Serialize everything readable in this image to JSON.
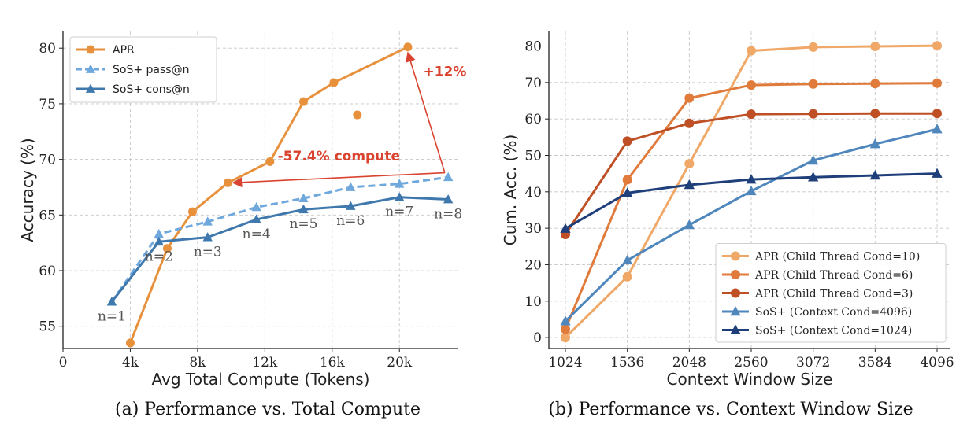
{
  "figure": {
    "caption_a": "(a) Performance vs. Total Compute",
    "caption_b": "(b) Performance vs. Context Window Size"
  },
  "chart_data": [
    {
      "type": "line",
      "xlabel": "Avg Total Compute (Tokens)",
      "ylabel": "Accuracy (%)",
      "xlim": [
        0,
        23500
      ],
      "ylim": [
        53,
        81.5
      ],
      "xticks": [
        0,
        4000,
        8000,
        12000,
        16000,
        20000
      ],
      "xtick_labels": [
        "0",
        "4k",
        "8k",
        "12k",
        "16k",
        "20k"
      ],
      "yticks": [
        55,
        60,
        65,
        70,
        75,
        80
      ],
      "grid": true,
      "legend_position": "top-left",
      "series": [
        {
          "name": "APR",
          "color": "#E8913D",
          "marker": "circle",
          "dashed": false,
          "x": [
            4000,
            6200,
            7700,
            9800,
            12300,
            14300,
            16100,
            20500
          ],
          "y": [
            53.5,
            62.0,
            65.3,
            67.9,
            69.8,
            75.2,
            76.9,
            80.1
          ]
        },
        {
          "name": "SoS+ pass@n",
          "color": "#6FA8DC",
          "marker": "triangle",
          "dashed": true,
          "x": [
            2900,
            5700,
            8600,
            11500,
            14300,
            17100,
            20000,
            22900
          ],
          "y": [
            57.2,
            63.3,
            64.4,
            65.7,
            66.5,
            67.5,
            67.8,
            68.4
          ]
        },
        {
          "name": "SoS+ cons@n",
          "color": "#3F78AD",
          "marker": "triangle",
          "dashed": false,
          "x": [
            2900,
            5700,
            8600,
            11500,
            14300,
            17100,
            20000,
            22900
          ],
          "y": [
            57.2,
            62.6,
            63.0,
            64.6,
            65.5,
            65.8,
            66.6,
            66.4
          ]
        }
      ],
      "extra_points": [
        {
          "series": "APR",
          "x": 17500,
          "y": 74.0
        }
      ],
      "point_labels": [
        {
          "text": "n=1",
          "x": 2900,
          "y": 57.2
        },
        {
          "text": "n=2",
          "x": 5700,
          "y": 62.6
        },
        {
          "text": "n=3",
          "x": 8600,
          "y": 63.0
        },
        {
          "text": "n=4",
          "x": 11500,
          "y": 64.6
        },
        {
          "text": "n=5",
          "x": 14300,
          "y": 65.5
        },
        {
          "text": "n=6",
          "x": 17100,
          "y": 65.8
        },
        {
          "text": "n=7",
          "x": 20000,
          "y": 66.6
        },
        {
          "text": "n=8",
          "x": 22900,
          "y": 66.4
        }
      ],
      "annotations": [
        {
          "text": "-57.4% compute",
          "color": "#D9432F",
          "arrow_from": {
            "x": 22700,
            "y": 68.8
          },
          "arrow_to": {
            "x": 10100,
            "y": 67.9
          },
          "text_at": {
            "x": 16400,
            "y": 69.9
          }
        },
        {
          "text": "+12%",
          "color": "#D9432F",
          "arrow_from": {
            "x": 22700,
            "y": 68.8
          },
          "arrow_to": {
            "x": 20500,
            "y": 79.6
          },
          "text_at": {
            "x": 22700,
            "y": 77.5
          }
        }
      ]
    },
    {
      "type": "line",
      "xlabel": "Context Window Size",
      "ylabel": "Cum. Acc. (%)",
      "categories": [
        "1024",
        "1536",
        "2048",
        "2560",
        "3072",
        "3584",
        "4096"
      ],
      "ylim": [
        -3,
        84
      ],
      "yticks": [
        0,
        10,
        20,
        30,
        40,
        50,
        60,
        70,
        80
      ],
      "yunit": "%",
      "grid": true,
      "legend_position": "bottom-right",
      "series": [
        {
          "name": "APR (Child Thread Cond=10)",
          "color": "#F0A868",
          "marker": "circle",
          "values": [
            0,
            16.7,
            47.7,
            78.7,
            79.7,
            79.9,
            80.1
          ]
        },
        {
          "name": "APR (Child Thread Cond=6)",
          "color": "#E07B3B",
          "marker": "circle",
          "values": [
            2.3,
            43.3,
            65.7,
            69.3,
            69.6,
            69.7,
            69.8
          ]
        },
        {
          "name": "APR (Child Thread Cond=3)",
          "color": "#BF4F24",
          "marker": "circle",
          "values": [
            28.3,
            53.9,
            58.8,
            61.3,
            61.4,
            61.5,
            61.5
          ]
        },
        {
          "name": "SoS+ (Context Cond=4096)",
          "color": "#4F86BC",
          "marker": "triangle",
          "values": [
            4.5,
            21.2,
            30.9,
            40.2,
            48.6,
            53.1,
            57.2
          ]
        },
        {
          "name": "SoS+ (Context Cond=1024)",
          "color": "#1F3F7A",
          "marker": "triangle",
          "values": [
            29.9,
            39.7,
            41.9,
            43.4,
            44.0,
            44.5,
            45.0
          ]
        }
      ]
    }
  ]
}
